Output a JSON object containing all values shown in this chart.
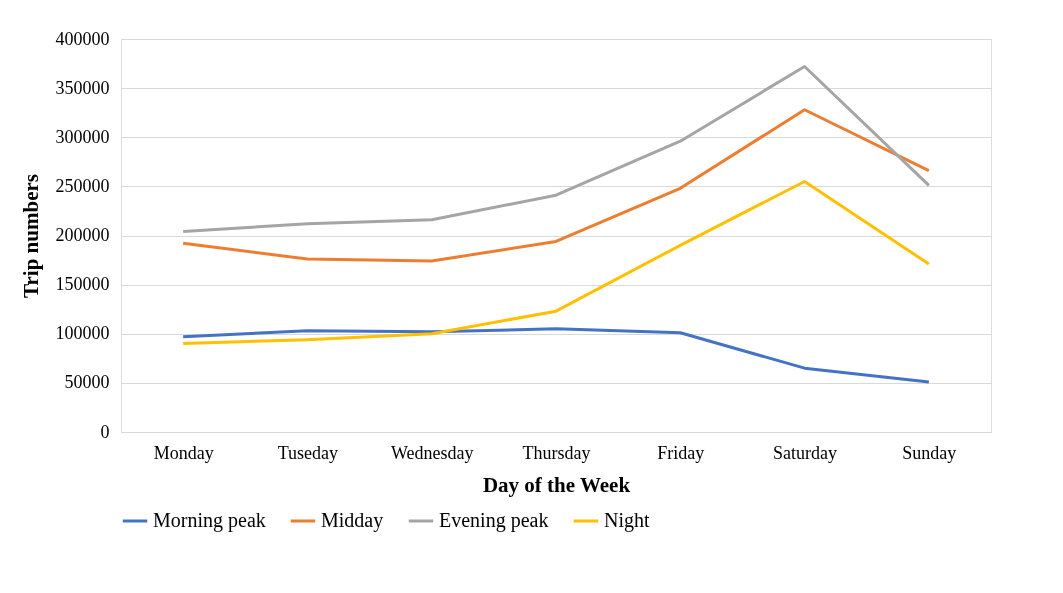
{
  "chart_data": {
    "type": "line",
    "xlabel": "Day of the Week",
    "ylabel": "Trip numbers",
    "categories": [
      "Monday",
      "Tuseday",
      "Wednesday",
      "Thursday",
      "Friday",
      "Saturday",
      "Sunday"
    ],
    "series": [
      {
        "name": "Morning peak",
        "color": "#4472c4",
        "values": [
          97000,
          103000,
          102000,
          105000,
          101000,
          65000,
          51000
        ]
      },
      {
        "name": "Midday",
        "color": "#ed7d31",
        "values": [
          192000,
          176000,
          174000,
          194000,
          248000,
          328000,
          266000
        ]
      },
      {
        "name": "Evening peak",
        "color": "#a5a5a5",
        "values": [
          204000,
          212000,
          216000,
          241000,
          296000,
          372000,
          251000
        ]
      },
      {
        "name": "Night",
        "color": "#ffc000",
        "values": [
          90000,
          94000,
          100000,
          123000,
          190000,
          255000,
          171000
        ]
      }
    ],
    "ylim": [
      0,
      400000
    ],
    "yticks": [
      0,
      50000,
      100000,
      150000,
      200000,
      250000,
      300000,
      350000,
      400000
    ],
    "grid": "y",
    "legend": "bottom",
    "marker": "none",
    "line_style": "solid"
  }
}
